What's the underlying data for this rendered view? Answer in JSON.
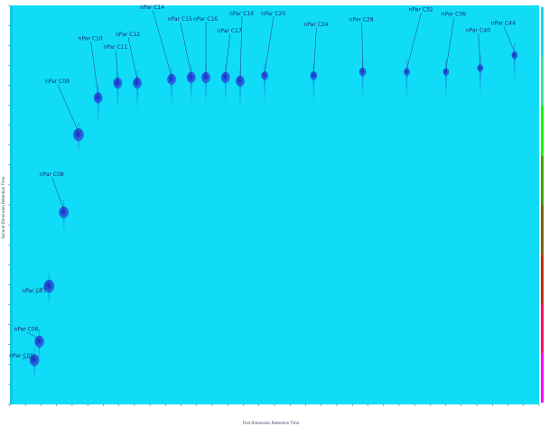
{
  "chart_data": {
    "type": "scatter",
    "title": "",
    "xlabel": "First Dimension Retention Time",
    "ylabel": "Second Dimension Retention Time",
    "colors": {
      "background": "#10dcf8",
      "peak_fill": "#2050e0",
      "peak_core": "#1830c8",
      "leader": "#1a2a7a",
      "colorbar": [
        "#ffffff",
        "#ff00ff",
        "#ff0060",
        "#c03000",
        "#806000",
        "#40a000",
        "#00ff00",
        "#40e0a0",
        "#10dcf8"
      ]
    },
    "series": [
      {
        "name": "",
        "points": [
          {
            "label": "nPar C05",
            "x": 0.05,
            "y": 0.12
          },
          {
            "label": "nPar C06",
            "x": 0.06,
            "y": 0.17
          },
          {
            "label": "nPar C07",
            "x": 0.08,
            "y": 0.32
          },
          {
            "label": "nPar C08",
            "x": 0.11,
            "y": 0.52
          },
          {
            "label": "nPar C09",
            "x": 0.14,
            "y": 0.73
          },
          {
            "label": "nPar C10",
            "x": 0.18,
            "y": 0.83
          },
          {
            "label": "nPar C11",
            "x": 0.22,
            "y": 0.87
          },
          {
            "label": "nPar C12",
            "x": 0.26,
            "y": 0.87
          },
          {
            "label": "nPar C14",
            "x": 0.33,
            "y": 0.88
          },
          {
            "label": "nPar C15",
            "x": 0.37,
            "y": 0.885
          },
          {
            "label": "nPar C16",
            "x": 0.4,
            "y": 0.885
          },
          {
            "label": "nPar C17",
            "x": 0.44,
            "y": 0.885
          },
          {
            "label": "nPar C18",
            "x": 0.47,
            "y": 0.875
          },
          {
            "label": "nPar C20",
            "x": 0.52,
            "y": 0.89
          },
          {
            "label": "nPar C24",
            "x": 0.62,
            "y": 0.89
          },
          {
            "label": "nPar C28",
            "x": 0.72,
            "y": 0.9
          },
          {
            "label": "nPar C32",
            "x": 0.81,
            "y": 0.9
          },
          {
            "label": "nPar C36",
            "x": 0.89,
            "y": 0.9
          },
          {
            "label": "nPar C40",
            "x": 0.96,
            "y": 0.91
          },
          {
            "label": "nPar C44",
            "x": 1.03,
            "y": 0.945
          }
        ]
      }
    ],
    "xlim": [
      0,
      1.08
    ],
    "ylim": [
      0,
      1.08
    ],
    "grid": false,
    "legend": "none"
  }
}
